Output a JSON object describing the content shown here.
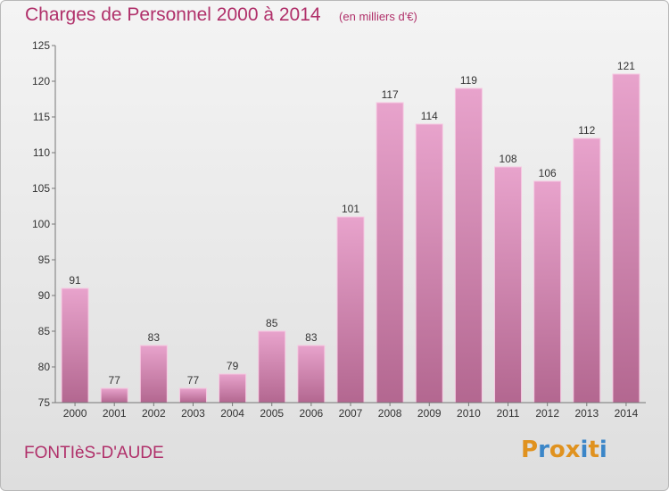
{
  "header": {
    "title": "Charges de Personnel 2000 à 2014",
    "subtitle": "(en milliers d'€)"
  },
  "footer": {
    "place": "FONTIèS-D'AUDE",
    "brand": "Proxiti"
  },
  "colors": {
    "accent": "#b0306a",
    "bar_top": "#e8a3cc",
    "bar_bottom": "#b36790",
    "brand_letters": [
      "#e0921f",
      "#3b86c8",
      "#e0921f",
      "#e0921f",
      "#3b86c8",
      "#e0921f",
      "#3b86c8"
    ]
  },
  "chart_data": {
    "type": "bar",
    "categories": [
      "2000",
      "2001",
      "2002",
      "2003",
      "2004",
      "2005",
      "2006",
      "2007",
      "2008",
      "2009",
      "2010",
      "2011",
      "2012",
      "2013",
      "2014"
    ],
    "values": [
      91,
      77,
      83,
      77,
      79,
      85,
      83,
      101,
      117,
      114,
      119,
      108,
      106,
      112,
      121
    ],
    "ylim": [
      75,
      125
    ],
    "yticks": [
      75,
      80,
      85,
      90,
      95,
      100,
      105,
      110,
      115,
      120,
      125
    ],
    "grid": false,
    "data_labels": true
  }
}
